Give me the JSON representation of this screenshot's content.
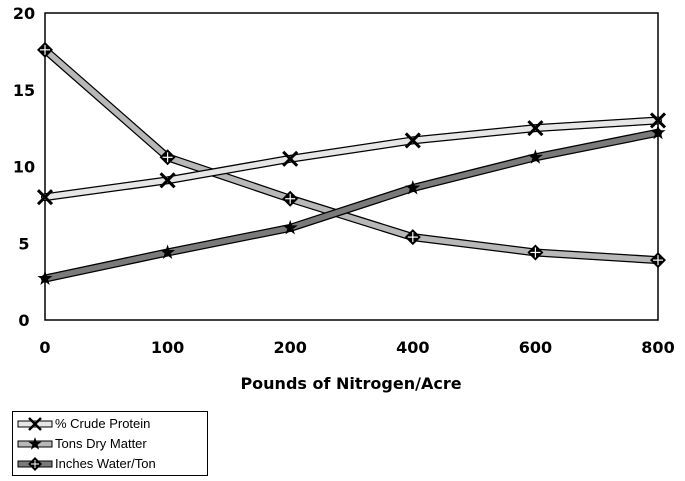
{
  "chart_data": {
    "type": "line",
    "title": "",
    "xlabel": "Pounds of Nitrogen/Acre",
    "ylabel": "",
    "categories": [
      "0",
      "100",
      "200",
      "400",
      "600",
      "800"
    ],
    "ylim": [
      0,
      20
    ],
    "yticks": [
      "0",
      "5",
      "10",
      "15",
      "20"
    ],
    "grid": false,
    "legend_position": "bottom-left",
    "series": [
      {
        "name": "% Crude Protein",
        "values": [
          8.0,
          9.1,
          10.5,
          11.7,
          12.5,
          13.0
        ],
        "marker": "x",
        "color": "#e6e6e6"
      },
      {
        "name": "Tons Dry Matter",
        "values": [
          2.7,
          4.4,
          6.0,
          8.6,
          10.6,
          12.2
        ],
        "marker": "star",
        "color": "#7a7a7a"
      },
      {
        "name": "Inches Water/Ton",
        "values": [
          17.6,
          10.6,
          7.9,
          5.4,
          4.4,
          3.9
        ],
        "marker": "diamond",
        "color": "#b8b8b8"
      }
    ]
  }
}
